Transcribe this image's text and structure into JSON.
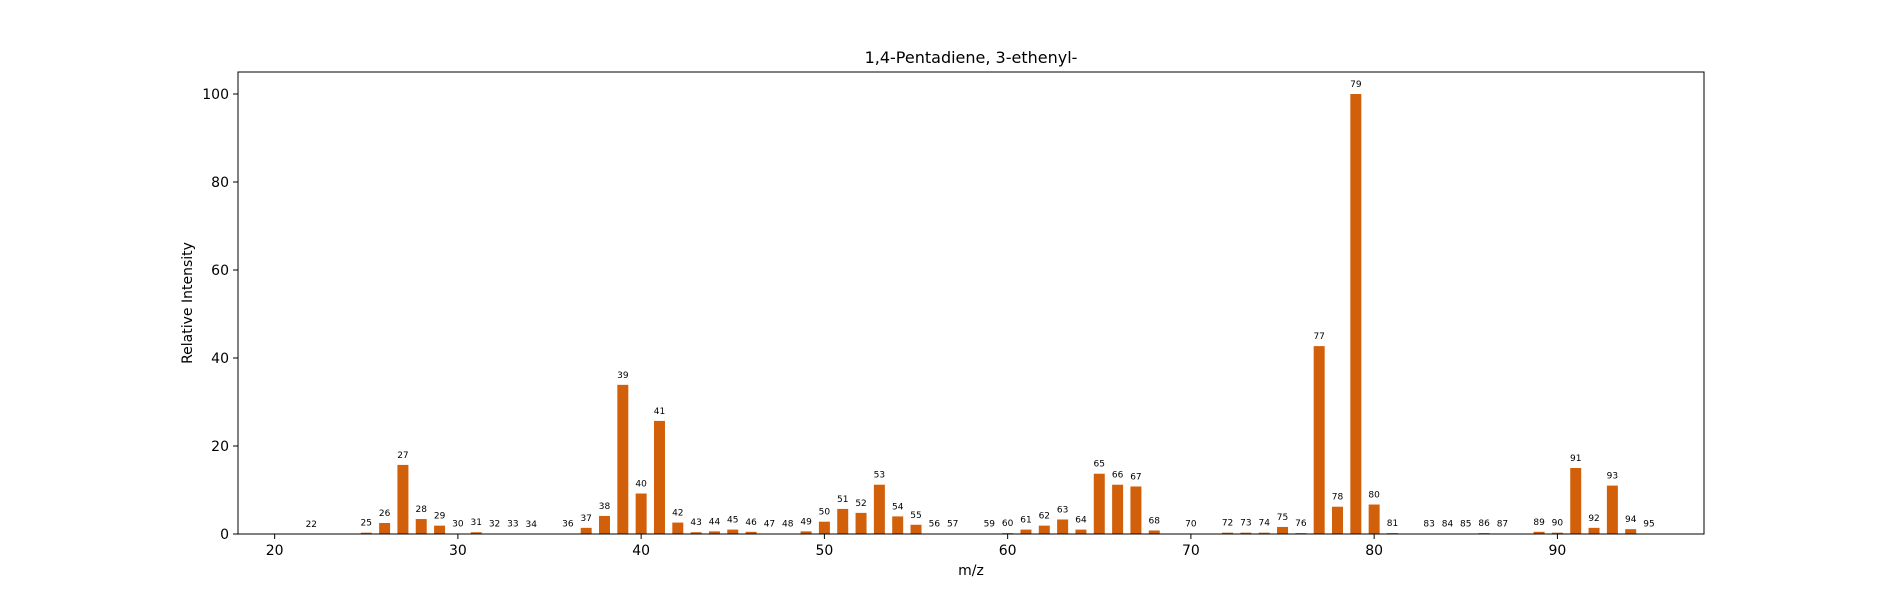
{
  "chart_data": {
    "type": "bar",
    "title": "1,4-Pentadiene, 3-ethenyl-",
    "xlabel": "m/z",
    "ylabel": "Relative Intensity",
    "xlim": [
      18,
      98
    ],
    "ylim": [
      0,
      105
    ],
    "xticks": [
      20,
      30,
      40,
      50,
      60,
      70,
      80,
      90
    ],
    "yticks": [
      0,
      20,
      40,
      60,
      80,
      100
    ],
    "bar_color": "#d2600a",
    "grid": false,
    "x": [
      22,
      25,
      26,
      27,
      28,
      29,
      30,
      31,
      32,
      33,
      34,
      36,
      37,
      38,
      39,
      40,
      41,
      42,
      43,
      44,
      45,
      46,
      47,
      48,
      49,
      50,
      51,
      52,
      53,
      54,
      55,
      56,
      57,
      59,
      60,
      61,
      62,
      63,
      64,
      65,
      66,
      67,
      68,
      70,
      72,
      73,
      74,
      75,
      76,
      77,
      78,
      79,
      80,
      81,
      83,
      84,
      85,
      86,
      87,
      89,
      90,
      91,
      92,
      93,
      94,
      95
    ],
    "values": [
      0.05,
      0.3,
      2.5,
      15.7,
      3.4,
      1.9,
      0.1,
      0.4,
      0.1,
      0.1,
      0.05,
      0.1,
      1.4,
      4.1,
      33.9,
      9.2,
      25.7,
      2.6,
      0.4,
      0.6,
      1.0,
      0.5,
      0.1,
      0.1,
      0.6,
      2.8,
      5.7,
      4.8,
      11.2,
      4.0,
      2.1,
      0.1,
      0.1,
      0.1,
      0.2,
      1.0,
      1.9,
      3.3,
      1.0,
      13.7,
      11.2,
      10.8,
      0.8,
      0.1,
      0.3,
      0.3,
      0.3,
      1.6,
      0.2,
      42.7,
      6.2,
      100.0,
      6.7,
      0.2,
      0.1,
      0.1,
      0.1,
      0.2,
      0.1,
      0.5,
      0.3,
      15.0,
      1.4,
      11.0,
      1.1,
      0.1
    ]
  }
}
